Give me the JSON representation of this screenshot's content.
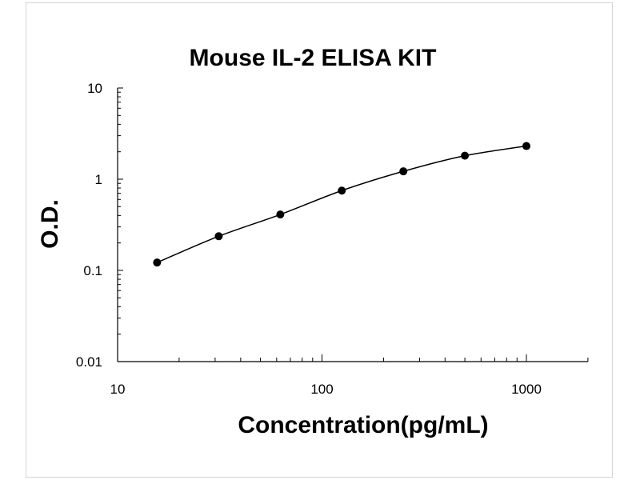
{
  "chart_data": {
    "type": "scatter",
    "title": "Mouse IL-2 ELISA KIT",
    "xlabel": "Concentration(pg/mL)",
    "ylabel": "O.D.",
    "xscale": "log",
    "yscale": "log",
    "xlim": [
      10,
      2000
    ],
    "ylim": [
      0.01,
      10
    ],
    "x_ticks": [
      10,
      100,
      1000
    ],
    "x_tick_labels": [
      "10",
      "100",
      "1000"
    ],
    "y_ticks": [
      0.01,
      0.1,
      1,
      10
    ],
    "y_tick_labels": [
      "0.01",
      "0.1",
      "1",
      "10"
    ],
    "grid": false,
    "fitted_curve": true,
    "series": [
      {
        "x": [
          15.6,
          31.25,
          62.5,
          125,
          250,
          500,
          1000
        ],
        "y": [
          0.122,
          0.237,
          0.41,
          0.75,
          1.22,
          1.81,
          2.31
        ]
      }
    ],
    "colors": {
      "marker": "#000000",
      "line": "#000000"
    }
  }
}
